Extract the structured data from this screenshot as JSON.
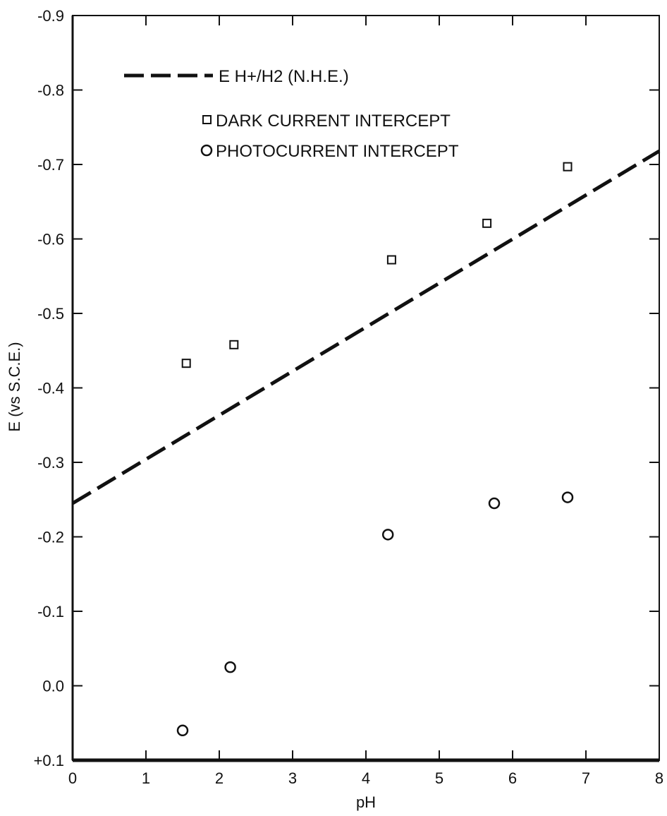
{
  "chart_data": {
    "type": "scatter",
    "xlabel": "pH",
    "ylabel": "E (vs S.C.E.)",
    "xlim": [
      0,
      8
    ],
    "ylim": [
      0.1,
      -0.9
    ],
    "x_ticks": [
      0,
      1,
      2,
      3,
      4,
      5,
      6,
      7,
      8
    ],
    "x_tick_labels": [
      "0",
      "1",
      "2",
      "3",
      "4",
      "5",
      "6",
      "7",
      "8"
    ],
    "y_ticks": [
      -0.9,
      -0.8,
      -0.7,
      -0.6,
      -0.5,
      -0.4,
      -0.3,
      -0.2,
      -0.1,
      0.0,
      0.1
    ],
    "y_tick_labels": [
      "-0.9",
      "-0.8",
      "-0.7",
      "-0.6",
      "-0.5",
      "-0.4",
      "-0.3",
      "-0.2",
      "-0.1",
      "0.0",
      "+0.1"
    ],
    "grid": false,
    "legend_position": "top-left",
    "line": {
      "name": "E H+/H2 (N.H.E.)",
      "style": "dashed",
      "x": [
        0,
        8
      ],
      "y": [
        -0.245,
        -0.718
      ]
    },
    "series": [
      {
        "name": "DARK CURRENT INTERCEPT",
        "marker": "square",
        "x": [
          1.55,
          2.2,
          4.35,
          5.65,
          6.75
        ],
        "y": [
          -0.433,
          -0.458,
          -0.572,
          -0.621,
          -0.697
        ]
      },
      {
        "name": "PHOTOCURRENT INTERCEPT",
        "marker": "circle",
        "x": [
          1.5,
          2.15,
          4.3,
          5.75,
          6.75
        ],
        "y": [
          0.06,
          -0.025,
          -0.203,
          -0.245,
          -0.253
        ]
      }
    ]
  }
}
